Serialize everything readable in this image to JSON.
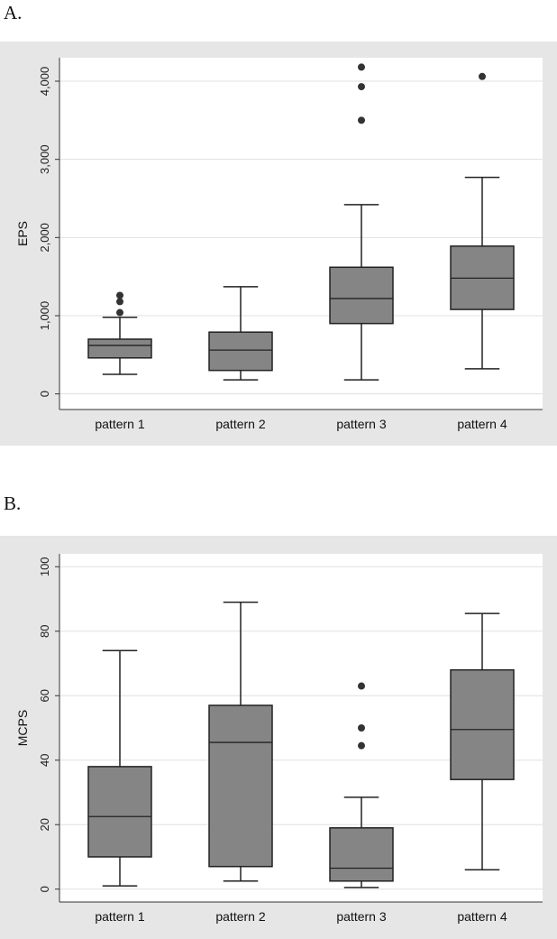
{
  "panels": {
    "a_label": "A.",
    "b_label": "B."
  },
  "chart_data": [
    {
      "type": "box",
      "ylabel": "EPS",
      "ylim": [
        -200,
        4300
      ],
      "yticks": [
        0,
        1000,
        2000,
        3000,
        4000
      ],
      "ytick_labels": [
        "0",
        "1,000",
        "2,000",
        "3,000",
        "4,000"
      ],
      "grid": true,
      "categories": [
        "pattern 1",
        "pattern 2",
        "pattern 3",
        "pattern 4"
      ],
      "boxes": [
        {
          "whisker_low": 250,
          "q1": 460,
          "median": 620,
          "q3": 700,
          "whisker_high": 980,
          "outliers": [
            1040,
            1180,
            1260
          ]
        },
        {
          "whisker_low": 180,
          "q1": 300,
          "median": 560,
          "q3": 790,
          "whisker_high": 1370,
          "outliers": []
        },
        {
          "whisker_low": 180,
          "q1": 900,
          "median": 1220,
          "q3": 1620,
          "whisker_high": 2420,
          "outliers": [
            3500,
            3930,
            4180
          ]
        },
        {
          "whisker_low": 320,
          "q1": 1080,
          "median": 1480,
          "q3": 1890,
          "whisker_high": 2770,
          "outliers": [
            4060
          ]
        }
      ],
      "box_color": "#858585"
    },
    {
      "type": "box",
      "ylabel": "MCPS",
      "ylim": [
        -4,
        104
      ],
      "yticks": [
        0,
        20,
        40,
        60,
        80,
        100
      ],
      "ytick_labels": [
        "0",
        "20",
        "40",
        "60",
        "80",
        "100"
      ],
      "grid": true,
      "categories": [
        "pattern 1",
        "pattern 2",
        "pattern 3",
        "pattern 4"
      ],
      "boxes": [
        {
          "whisker_low": 1,
          "q1": 10,
          "median": 22.5,
          "q3": 38,
          "whisker_high": 74,
          "outliers": []
        },
        {
          "whisker_low": 2.5,
          "q1": 7,
          "median": 45.5,
          "q3": 57,
          "whisker_high": 89,
          "outliers": []
        },
        {
          "whisker_low": 0.5,
          "q1": 2.5,
          "median": 6.5,
          "q3": 19,
          "whisker_high": 28.5,
          "outliers": [
            44.5,
            50,
            63
          ]
        },
        {
          "whisker_low": 6,
          "q1": 34,
          "median": 49.5,
          "q3": 68,
          "whisker_high": 85.5,
          "outliers": []
        }
      ],
      "box_color": "#858585"
    }
  ]
}
